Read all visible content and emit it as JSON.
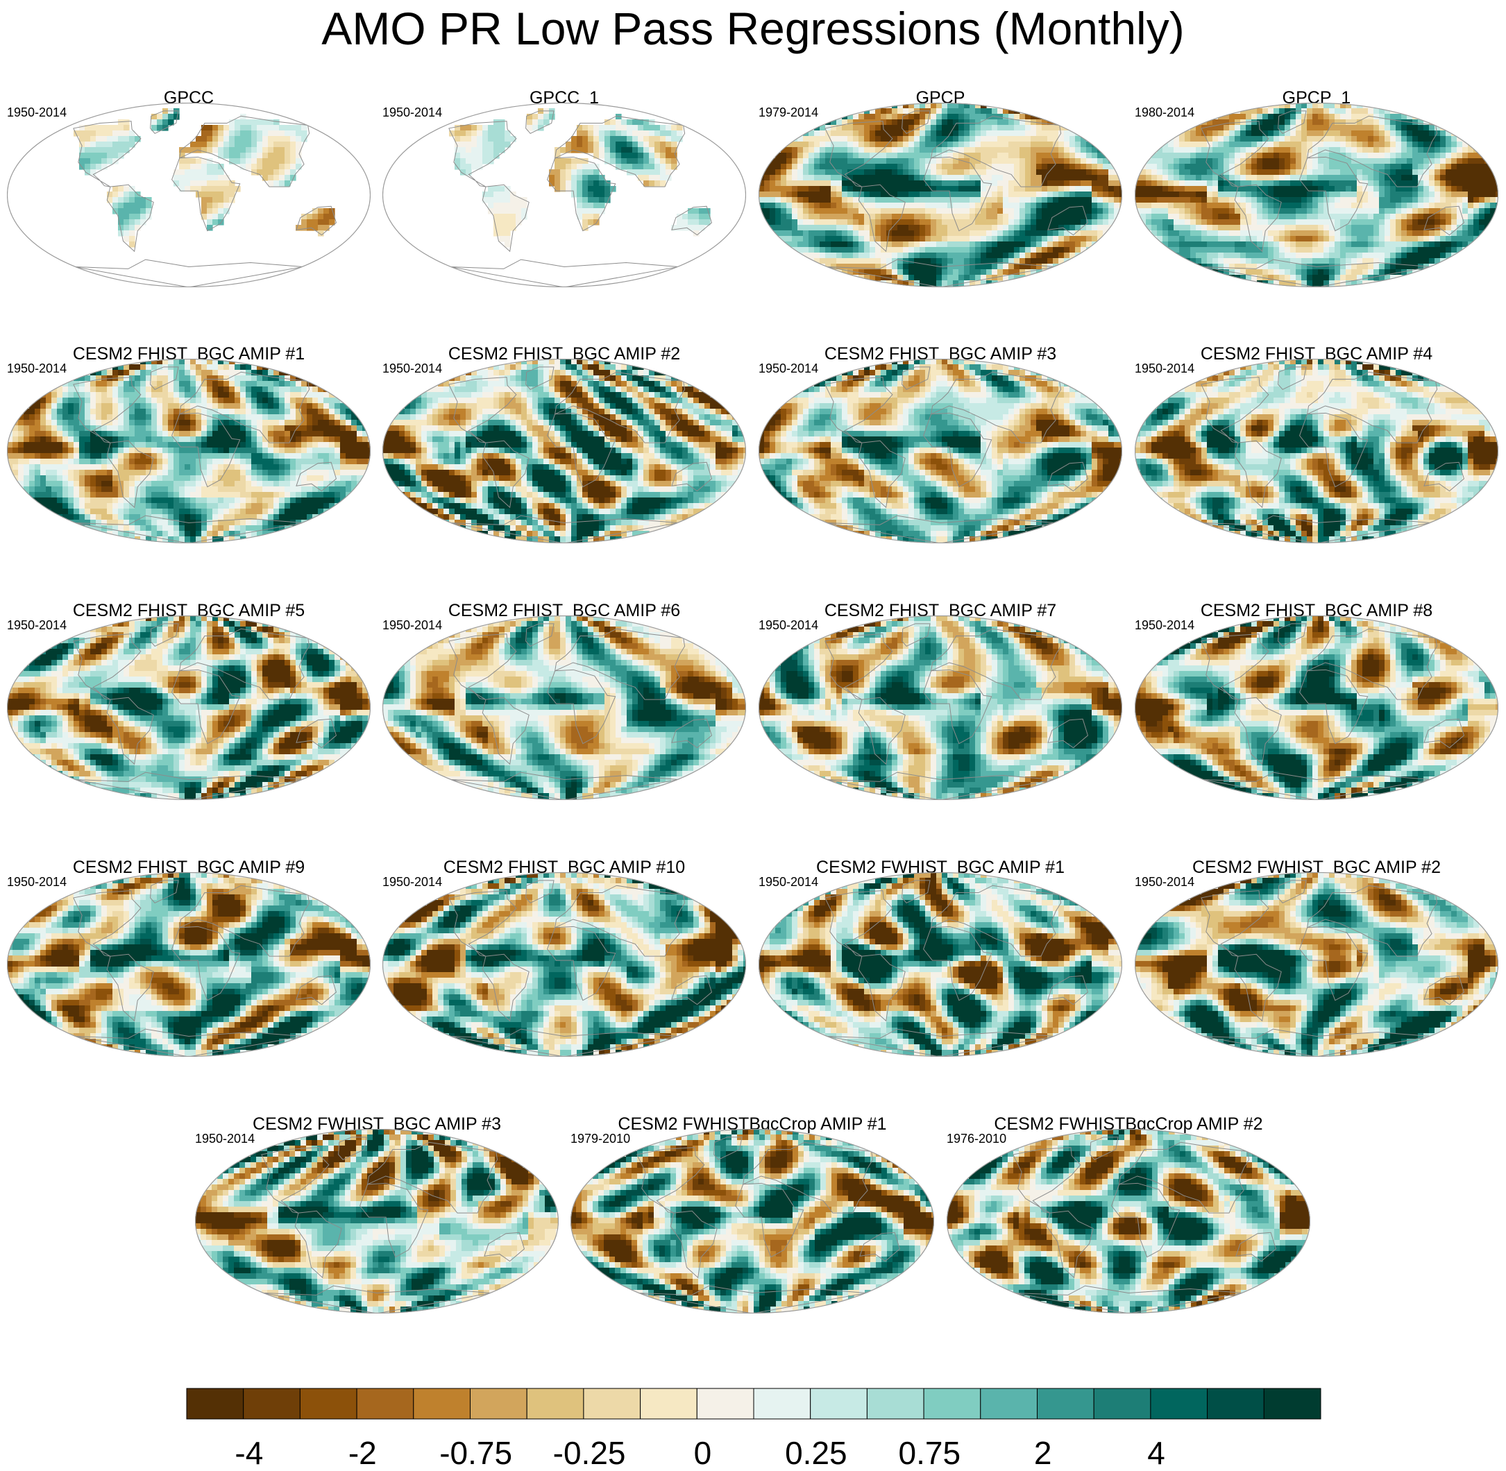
{
  "title": "AMO PR Low Pass Regressions (Monthly)",
  "panels": [
    {
      "title": "GPCC",
      "period": "1950-2014",
      "style": "landonly",
      "seed": 11
    },
    {
      "title": "GPCC_1",
      "period": "1950-2014",
      "style": "landonly",
      "seed": 12
    },
    {
      "title": "GPCP",
      "period": "1979-2014",
      "style": "obs",
      "seed": 13
    },
    {
      "title": "GPCP_1",
      "period": "1980-2014",
      "style": "obs",
      "seed": 14
    },
    {
      "title": "CESM2 FHIST_BGC AMIP #1",
      "period": "1950-2014",
      "style": "model",
      "seed": 21
    },
    {
      "title": "CESM2 FHIST_BGC AMIP #2",
      "period": "1950-2014",
      "style": "model",
      "seed": 22
    },
    {
      "title": "CESM2 FHIST_BGC AMIP #3",
      "period": "1950-2014",
      "style": "model",
      "seed": 23
    },
    {
      "title": "CESM2 FHIST_BGC AMIP #4",
      "period": "1950-2014",
      "style": "model",
      "seed": 24
    },
    {
      "title": "CESM2 FHIST_BGC AMIP #5",
      "period": "1950-2014",
      "style": "model",
      "seed": 25
    },
    {
      "title": "CESM2 FHIST_BGC AMIP #6",
      "period": "1950-2014",
      "style": "model",
      "seed": 26
    },
    {
      "title": "CESM2 FHIST_BGC AMIP #7",
      "period": "1950-2014",
      "style": "model",
      "seed": 27
    },
    {
      "title": "CESM2 FHIST_BGC AMIP #8",
      "period": "1950-2014",
      "style": "model",
      "seed": 28
    },
    {
      "title": "CESM2 FHIST_BGC AMIP #9",
      "period": "1950-2014",
      "style": "model",
      "seed": 29
    },
    {
      "title": "CESM2 FHIST_BGC AMIP #10",
      "period": "1950-2014",
      "style": "model",
      "seed": 30
    },
    {
      "title": "CESM2 FWHIST_BGC AMIP #1",
      "period": "1950-2014",
      "style": "model",
      "seed": 31
    },
    {
      "title": "CESM2 FWHIST_BGC AMIP #2",
      "period": "1950-2014",
      "style": "model",
      "seed": 32
    },
    {
      "title": "CESM2 FWHIST_BGC AMIP #3",
      "period": "1950-2014",
      "style": "model",
      "seed": 33
    },
    {
      "title": "CESM2 FWHISTBgcCrop AMIP #1",
      "period": "1979-2010",
      "style": "obs",
      "seed": 34
    },
    {
      "title": "CESM2 FWHISTBgcCrop AMIP #2",
      "period": "1976-2010",
      "style": "obs",
      "seed": 35
    }
  ],
  "colorbar": {
    "colors": [
      "#543005",
      "#6f3f08",
      "#8c510a",
      "#a6671e",
      "#bf812d",
      "#d2a55c",
      "#dfc27d",
      "#edd9a8",
      "#f6e8c3",
      "#f5f1e8",
      "#e6f3f1",
      "#c7eae5",
      "#a8ddd5",
      "#80cdc1",
      "#5ab4ac",
      "#35978f",
      "#1d7e76",
      "#01665e",
      "#004f47",
      "#003c30"
    ],
    "labels": [
      "-4",
      "-2",
      "-0.75",
      "-0.25",
      "0",
      "0.25",
      "0.75",
      "2",
      "4"
    ]
  }
}
